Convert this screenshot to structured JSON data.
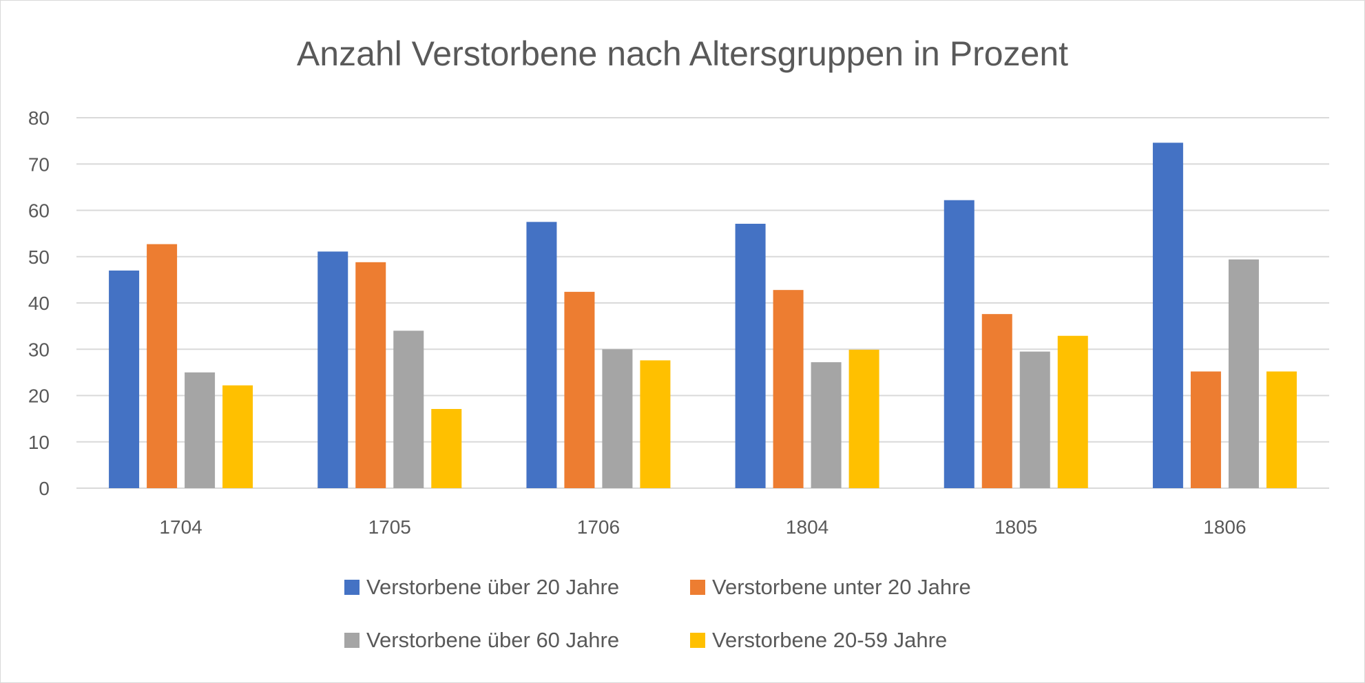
{
  "chart_data": {
    "type": "bar",
    "title": "Anzahl Verstorbene nach Altersgruppen in Prozent",
    "xlabel": "",
    "ylabel": "",
    "ylim": [
      0,
      80
    ],
    "yticks": [
      0,
      10,
      20,
      30,
      40,
      50,
      60,
      70,
      80
    ],
    "grid": true,
    "legend_position": "bottom",
    "categories": [
      "1704",
      "1705",
      "1706",
      "1804",
      "1805",
      "1806"
    ],
    "series": [
      {
        "name": "Verstorbene über 20 Jahre",
        "color": "#4472c4",
        "values": [
          47.0,
          51.1,
          57.5,
          57.1,
          62.2,
          74.6
        ]
      },
      {
        "name": "Verstorbene unter 20 Jahre",
        "color": "#ed7d31",
        "values": [
          52.7,
          48.8,
          42.4,
          42.8,
          37.6,
          25.2
        ]
      },
      {
        "name": "Verstorbene über 60 Jahre",
        "color": "#a5a5a5",
        "values": [
          25.0,
          34.0,
          30.0,
          27.2,
          29.5,
          49.4
        ]
      },
      {
        "name": "Verstorbene 20-59 Jahre",
        "color": "#ffc000",
        "values": [
          22.2,
          17.1,
          27.6,
          29.9,
          32.9,
          25.2
        ]
      }
    ]
  }
}
